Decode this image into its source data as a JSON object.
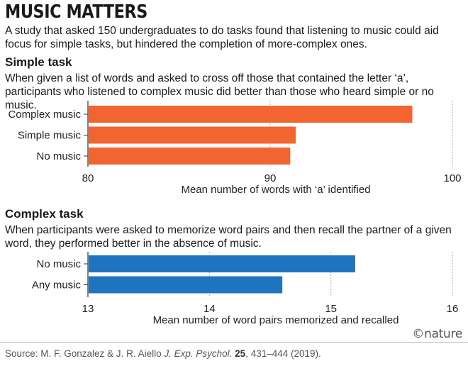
{
  "header": {
    "title": "MUSIC MATTERS",
    "subtitle": "A study that asked 150 undergraduates to do tasks found that listening to music could aid focus for simple tasks, but hindered the completion of more-complex ones."
  },
  "colors": {
    "simple_bars": "#f26430",
    "complex_bars": "#1f74bf",
    "gridline": "#aaaaaa"
  },
  "chart_data": [
    {
      "type": "bar",
      "orientation": "horizontal",
      "title": "Simple task",
      "subtitle": "When given a list of words and asked to cross off those that contained the letter ‘a’, participants who listened to complex music did better than those who heard simple or no music.",
      "categories": [
        "Complex music",
        "Simple music",
        "No music"
      ],
      "values": [
        97.8,
        91.4,
        91.1
      ],
      "xlabel": "Mean number of words with ‘a’ identified",
      "xlim": [
        80,
        100
      ],
      "ticks": [
        "80",
        "90",
        "100"
      ],
      "grid": true
    },
    {
      "type": "bar",
      "orientation": "horizontal",
      "title": "Complex task",
      "subtitle": "When participants were asked to memorize word pairs and then recall the partner of a given word, they performed better in the absence of music.",
      "categories": [
        "No music",
        "Any music"
      ],
      "values": [
        15.2,
        14.6
      ],
      "xlabel": "Mean number of word pairs memorized and recalled",
      "xlim": [
        13,
        16
      ],
      "ticks": [
        "13",
        "14",
        "15",
        "16"
      ],
      "grid": true
    }
  ],
  "footer": {
    "source_prefix": "Source: M. F. Gonzalez & J. R. Aiello ",
    "source_journal": "J. Exp. Psychol.",
    "source_volume": "25",
    "source_rest": ", 431–444 (2019).",
    "brand": "©nature"
  }
}
